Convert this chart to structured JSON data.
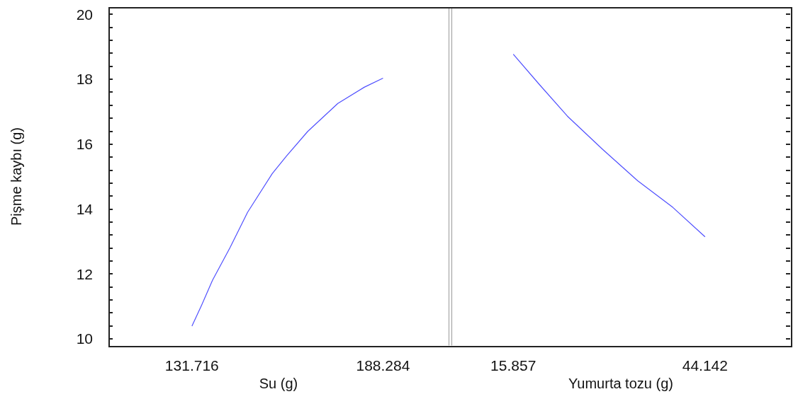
{
  "chart_data": [
    {
      "type": "line",
      "xlabel": "Su (g)",
      "ylabel": "Pişme kaybı (g)",
      "grid": false,
      "marker": "none",
      "xlim": [
        107,
        207.7
      ],
      "xticks": [
        131.716,
        188.284
      ],
      "ylim": [
        9.8,
        20.2
      ],
      "yticks": [
        10,
        {
          "value": 10.4,
          "label": null
        },
        {
          "value": 10.8,
          "label": null
        },
        {
          "value": 11.2,
          "label": null
        },
        {
          "value": 11.6,
          "label": null
        },
        12,
        {
          "value": 12.4,
          "label": null
        },
        {
          "value": 12.8,
          "label": null
        },
        {
          "value": 13.2,
          "label": null
        },
        {
          "value": 13.6,
          "label": null
        },
        14,
        {
          "value": 14.4,
          "label": null
        },
        {
          "value": 14.8,
          "label": null
        },
        {
          "value": 15.2,
          "label": null
        },
        {
          "value": 15.6,
          "label": null
        },
        16,
        {
          "value": 16.4,
          "label": null
        },
        {
          "value": 16.8,
          "label": null
        },
        {
          "value": 17.2,
          "label": null
        },
        {
          "value": 17.6,
          "label": null
        },
        18,
        {
          "value": 18.4,
          "label": null
        },
        {
          "value": 18.8,
          "label": null
        },
        {
          "value": 19.2,
          "label": null
        },
        {
          "value": 19.6,
          "label": null
        },
        20
      ],
      "series": [
        {
          "color": "#5050ff",
          "x": [
            131.716,
            134.6,
            137.8,
            143.0,
            148.2,
            155.5,
            159.7,
            166.0,
            174.9,
            182.7,
            188.284
          ],
          "values": [
            10.39,
            11.04,
            11.8,
            12.81,
            13.9,
            15.09,
            15.63,
            16.39,
            17.25,
            17.75,
            18.03
          ]
        }
      ]
    },
    {
      "type": "line",
      "xlabel": "Yumurta tozu (g)",
      "grid": false,
      "marker": "none",
      "tick_labels": "x",
      "xlim": [
        6.74,
        56.7
      ],
      "xticks": [
        15.857,
        44.142
      ],
      "ylim": [
        9.8,
        20.2
      ],
      "yticks": [
        10,
        {
          "value": 10.4,
          "label": null
        },
        {
          "value": 10.8,
          "label": null
        },
        {
          "value": 11.2,
          "label": null
        },
        {
          "value": 11.6,
          "label": null
        },
        12,
        {
          "value": 12.4,
          "label": null
        },
        {
          "value": 12.8,
          "label": null
        },
        {
          "value": 13.2,
          "label": null
        },
        {
          "value": 13.6,
          "label": null
        },
        14,
        {
          "value": 14.4,
          "label": null
        },
        {
          "value": 14.8,
          "label": null
        },
        {
          "value": 15.2,
          "label": null
        },
        {
          "value": 15.6,
          "label": null
        },
        16,
        {
          "value": 16.4,
          "label": null
        },
        {
          "value": 16.8,
          "label": null
        },
        {
          "value": 17.2,
          "label": null
        },
        {
          "value": 17.6,
          "label": null
        },
        18,
        {
          "value": 18.4,
          "label": null
        },
        {
          "value": 18.8,
          "label": null
        },
        {
          "value": 19.2,
          "label": null
        },
        {
          "value": 19.6,
          "label": null
        },
        20
      ],
      "series": [
        {
          "color": "#5050ff",
          "x": [
            15.857,
            19.69,
            23.84,
            29.02,
            34.2,
            39.38,
            44.142
          ],
          "values": [
            18.77,
            17.84,
            16.86,
            15.84,
            14.87,
            14.05,
            13.14
          ]
        }
      ]
    }
  ]
}
